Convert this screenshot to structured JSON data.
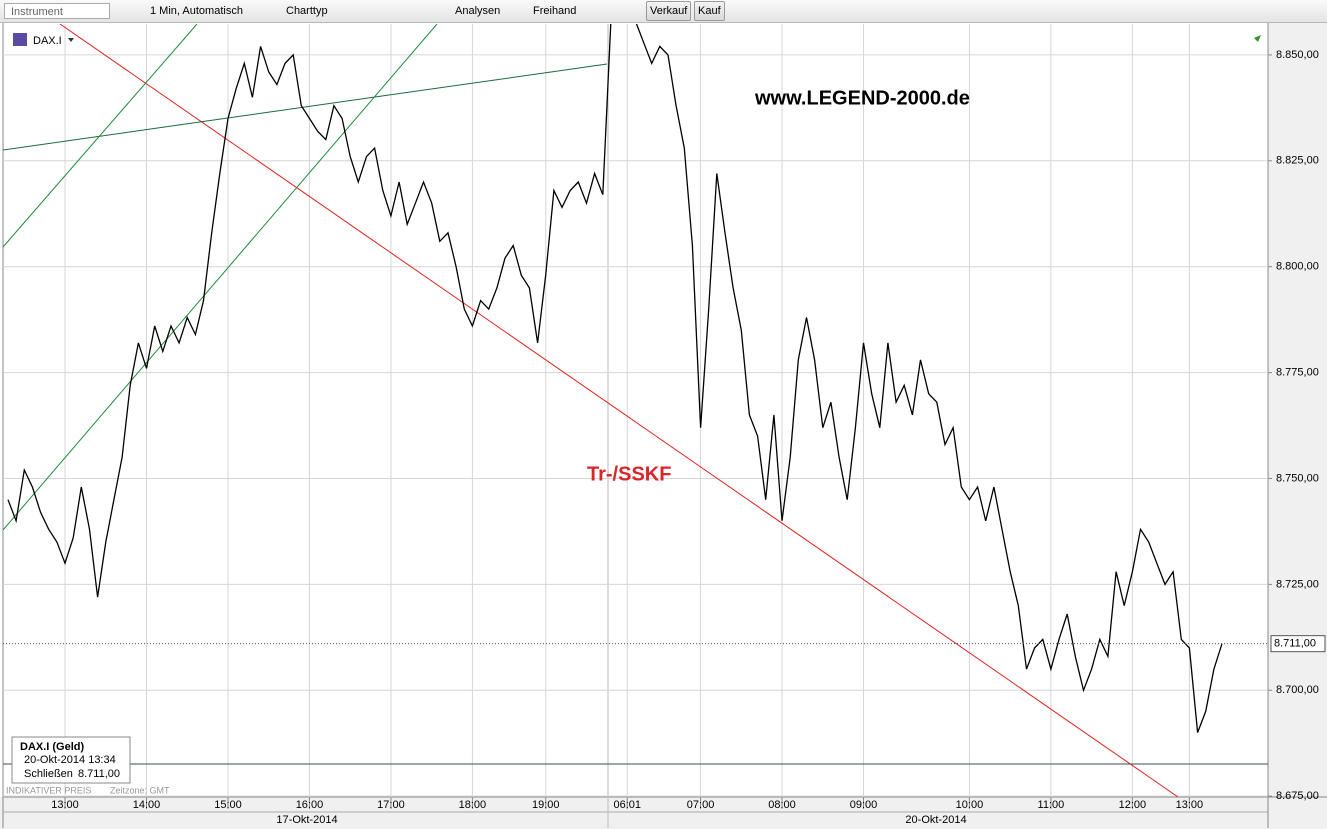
{
  "toolbar": {
    "instrument": "Instrument",
    "interval": "1 Min,  Automatisch",
    "chart_type": "Charttyp",
    "analyses": "Analysen",
    "freehand": "Freihand",
    "sell": "Verkauf",
    "buy": "Kauf"
  },
  "chart_data": {
    "type": "line",
    "instrument": "DAX.I",
    "watermark": "www.LEGEND-2000.de",
    "annotation": "Tr-/SSKF",
    "footer_left": "INDIKATIVER PREIS",
    "footer_tz": "Zeitzone: GMT",
    "date_labels": [
      "17-Okt-2014",
      "20-Okt-2014"
    ],
    "info_box": {
      "title": "DAX.I (Geld)",
      "datetime": "20-Okt-2014 13:34",
      "close_label": "Schließen",
      "close_value": "8.711,00"
    },
    "last_price": {
      "value": 8711,
      "label": "8.711,00"
    },
    "categories": [
      null,
      null,
      null,
      null,
      null,
      null,
      null,
      "13:00",
      null,
      null,
      null,
      null,
      null,
      null,
      null,
      null,
      null,
      "14:00",
      null,
      null,
      null,
      null,
      null,
      null,
      null,
      null,
      null,
      "15:00",
      null,
      null,
      null,
      null,
      null,
      null,
      null,
      null,
      null,
      "16:00",
      null,
      null,
      null,
      null,
      null,
      null,
      null,
      null,
      null,
      "17:00",
      null,
      null,
      null,
      null,
      null,
      null,
      null,
      null,
      null,
      "18:00",
      null,
      null,
      null,
      null,
      null,
      null,
      null,
      null,
      "19:00",
      null,
      null,
      null,
      null,
      null,
      null,
      null,
      null,
      null,
      "06:01",
      null,
      null,
      null,
      null,
      null,
      null,
      null,
      null,
      "07:00",
      null,
      null,
      null,
      null,
      null,
      null,
      null,
      null,
      null,
      "08:00",
      null,
      null,
      null,
      null,
      null,
      null,
      null,
      null,
      null,
      "09:00",
      null,
      null,
      null,
      null,
      null,
      null,
      null,
      null,
      null,
      null,
      null,
      null,
      "10:00",
      null,
      null,
      null,
      null,
      null,
      null,
      null,
      null,
      null,
      "11:00",
      null,
      null,
      null,
      null,
      null,
      null,
      null,
      null,
      null,
      "12:00",
      null,
      null,
      null,
      null,
      null,
      null,
      "13:00",
      null,
      null,
      null,
      null
    ],
    "series": [
      {
        "name": "DAX.I",
        "color": "#000000",
        "values": [
          8745,
          8740,
          8752,
          8748,
          8742,
          8738,
          8735,
          8730,
          8736,
          8748,
          8738,
          8722,
          8735,
          8745,
          8755,
          8772,
          8782,
          8776,
          8786,
          8780,
          8786,
          8782,
          8788,
          8784,
          8792,
          8808,
          8822,
          8835,
          8842,
          8848,
          8840,
          8852,
          8846,
          8843,
          8848,
          8850,
          8838,
          8835,
          8832,
          8830,
          8838,
          8835,
          8826,
          8820,
          8826,
          8828,
          8818,
          8812,
          8820,
          8810,
          8815,
          8820,
          8815,
          8806,
          8808,
          8800,
          8790,
          8786,
          8792,
          8790,
          8795,
          8802,
          8805,
          8798,
          8795,
          8782,
          8798,
          8818,
          8814,
          8818,
          8820,
          8815,
          8822,
          8817,
          8858,
          8860,
          8860,
          8858,
          8853,
          8848,
          8852,
          8850,
          8838,
          8828,
          8805,
          8762,
          8790,
          8822,
          8808,
          8795,
          8785,
          8765,
          8760,
          8745,
          8765,
          8740,
          8755,
          8778,
          8788,
          8778,
          8762,
          8768,
          8755,
          8745,
          8762,
          8782,
          8770,
          8762,
          8782,
          8768,
          8772,
          8765,
          8778,
          8770,
          8768,
          8758,
          8762,
          8748,
          8745,
          8748,
          8740,
          8748,
          8738,
          8728,
          8720,
          8705,
          8710,
          8712,
          8705,
          8712,
          8718,
          8708,
          8700,
          8705,
          8712,
          8708,
          8728,
          8720,
          8728,
          8738,
          8735,
          8730,
          8725,
          8728,
          8712,
          8710,
          8690,
          8695,
          8705,
          8711
        ]
      }
    ],
    "ylim": [
      8674.8,
      8857.3
    ],
    "yticks": [
      {
        "value": 8850,
        "label": "8.850,00"
      },
      {
        "value": 8825,
        "label": "8.825,00"
      },
      {
        "value": 8800,
        "label": "8.800,00"
      },
      {
        "value": 8775,
        "label": "8.775,00"
      },
      {
        "value": 8750,
        "label": "8.750,00"
      },
      {
        "value": 8725,
        "label": "8.725,00"
      },
      {
        "value": 8700,
        "label": "8.700,00"
      },
      {
        "value": 8675,
        "label": "8.675,00"
      }
    ],
    "grid": true
  }
}
